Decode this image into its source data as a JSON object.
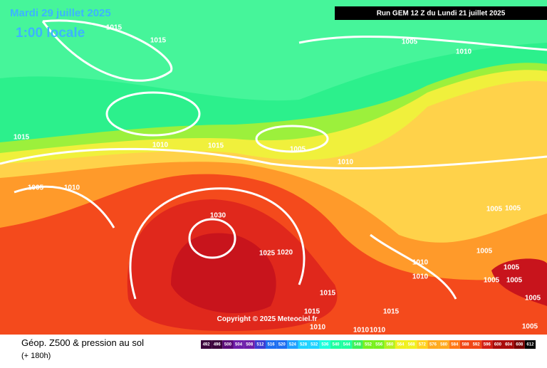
{
  "header": {
    "date": "Mardi 29 juillet 2025",
    "time": "1:00 locale",
    "run": "Run GEM 12 Z du Lundi 21 juillet 2025"
  },
  "copyright": "Copyright © 2025 Meteociel.fr",
  "footer": {
    "title": "Géop. Z500 & pression au sol",
    "lead": "(+ 180h)"
  },
  "legend": {
    "labels": [
      492,
      496,
      500,
      504,
      508,
      512,
      516,
      520,
      524,
      528,
      532,
      536,
      540,
      544,
      548,
      552,
      556,
      560,
      564,
      568,
      572,
      576,
      580,
      584,
      588,
      592,
      596,
      600,
      604,
      608,
      612
    ]
  },
  "isobars": [
    "1015",
    "1015",
    "1005",
    "1010",
    "1015",
    "1010",
    "1015",
    "1005",
    "1010",
    "1005",
    "1010",
    "1030",
    "1005",
    "1005",
    "1025",
    "1020",
    "1005",
    "1010",
    "1010",
    "1005",
    "1005",
    "1005",
    "1015",
    "1005",
    "1015",
    "1015",
    "1010",
    "1010",
    "1010",
    "1005"
  ]
}
